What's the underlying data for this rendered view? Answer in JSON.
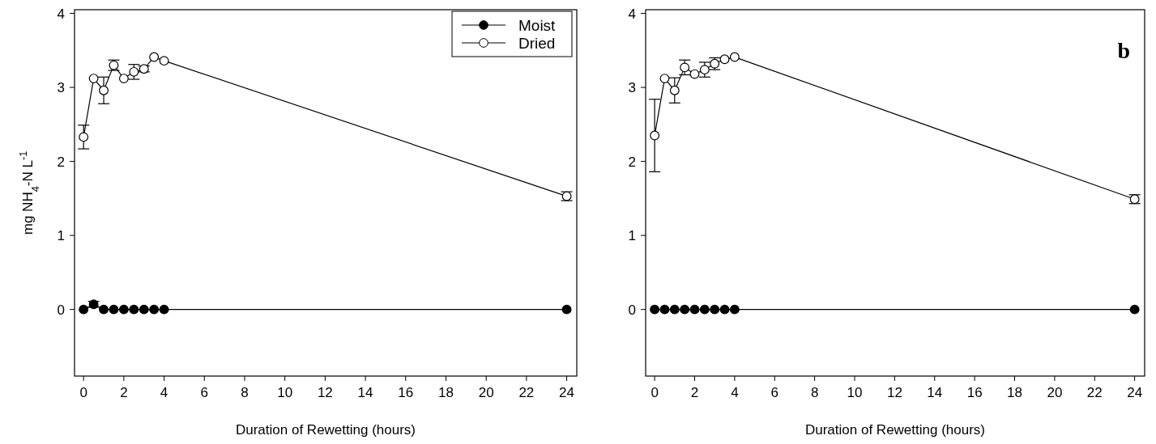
{
  "chart_data": [
    {
      "type": "line",
      "xlabel": "Duration of Rewetting (hours)",
      "ylabel": "mg NH$_{4}$-N L$^{-1}$",
      "x": [
        0,
        0.5,
        1,
        1.5,
        2,
        2.5,
        3,
        3.5,
        4,
        24
      ],
      "xlim": [
        -0.45,
        24.5
      ],
      "ylim": [
        -0.9,
        4.05
      ],
      "xticks": [
        0,
        2,
        4,
        6,
        8,
        10,
        12,
        14,
        16,
        18,
        20,
        22,
        24
      ],
      "yticks": [
        0,
        1,
        2,
        3,
        4
      ],
      "marker": "circle",
      "legend": "top right",
      "grid": false,
      "series": [
        {
          "name": "Moist",
          "color": "#000000",
          "values": [
            0,
            0.07,
            0,
            0,
            0,
            0,
            0,
            0,
            0,
            0
          ],
          "errors": [
            null,
            0.04,
            null,
            null,
            null,
            null,
            null,
            null,
            null,
            null
          ]
        },
        {
          "name": "Dried",
          "color": "#ffffff",
          "values": [
            2.33,
            3.12,
            2.96,
            3.3,
            3.12,
            3.21,
            3.25,
            3.41,
            3.36,
            1.53
          ],
          "errors": [
            0.16,
            null,
            0.18,
            0.07,
            null,
            0.1,
            0.04,
            null,
            null,
            0.06
          ]
        }
      ]
    },
    {
      "type": "line",
      "xlabel": "Duration of Rewetting (hours)",
      "annotations": [
        "b"
      ],
      "x": [
        0,
        0.5,
        1,
        1.5,
        2,
        2.5,
        3,
        3.5,
        4,
        24
      ],
      "xlim": [
        -0.45,
        24.5
      ],
      "ylim": [
        -0.9,
        4.05
      ],
      "xticks": [
        0,
        2,
        4,
        6,
        8,
        10,
        12,
        14,
        16,
        18,
        20,
        22,
        24
      ],
      "yticks": [
        0,
        1,
        2,
        3,
        4
      ],
      "marker": "circle",
      "grid": false,
      "series": [
        {
          "color": "#000000",
          "values": [
            0,
            0,
            0,
            0,
            0,
            0,
            0,
            0,
            0,
            0
          ]
        },
        {
          "color": "#ffffff",
          "values": [
            2.35,
            3.12,
            2.96,
            3.27,
            3.18,
            3.24,
            3.32,
            3.38,
            3.41,
            1.49
          ],
          "errors": [
            0.49,
            null,
            0.17,
            0.1,
            null,
            0.1,
            0.08,
            null,
            null,
            0.06
          ]
        }
      ]
    }
  ]
}
